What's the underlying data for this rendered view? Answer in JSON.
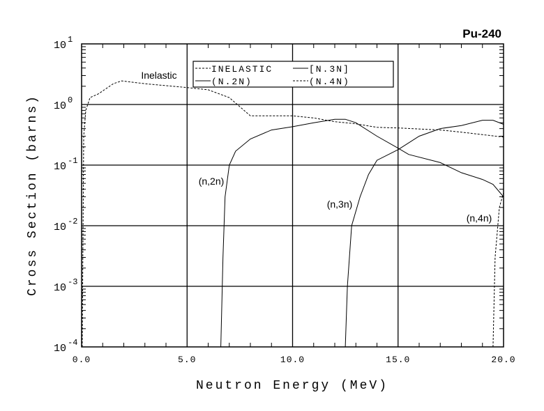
{
  "chart_data": {
    "type": "line",
    "title": "Pu-240",
    "xlabel": "Neutron Energy (MeV)",
    "ylabel": "Cross Section (barns)",
    "xlim": [
      0,
      20
    ],
    "ylim": [
      0.0001,
      10
    ],
    "yscale": "log",
    "grid": true,
    "legend_position": "top-center",
    "x_ticks": [
      0,
      5,
      10,
      15,
      20
    ],
    "x_tick_labels": [
      "0.0",
      "5.0",
      "10.0",
      "15.0",
      "20.0"
    ],
    "y_ticks": [
      1,
      0,
      -1,
      -2,
      -3,
      -4
    ],
    "y_tick_base": "10",
    "y_tick_exponents": [
      "1",
      "0",
      "-1",
      "-2",
      "-3",
      "-4"
    ],
    "series": [
      {
        "name": "INELASTIC",
        "legend": "INELASTIC",
        "style": "dashed",
        "annotation": "Inelastic",
        "x": [
          0.03,
          0.1,
          0.2,
          0.4,
          0.8,
          1.5,
          1.9,
          3,
          5,
          6,
          7,
          8,
          10,
          11,
          12,
          13,
          14,
          15,
          17,
          18,
          20
        ],
        "y": [
          0.0001,
          0.3,
          0.8,
          1.3,
          1.5,
          2.2,
          2.45,
          2.2,
          1.9,
          1.75,
          1.3,
          0.65,
          0.65,
          0.6,
          0.52,
          0.48,
          0.42,
          0.41,
          0.38,
          0.35,
          0.29
        ]
      },
      {
        "name": "(N,2N)",
        "legend": "(N.2N)",
        "style": "solid",
        "annotation": "(n,2n)",
        "x": [
          6.6,
          6.7,
          6.8,
          7.0,
          7.3,
          8,
          9,
          10,
          11,
          12,
          12.5,
          13,
          14,
          15,
          15.5,
          17,
          18,
          19,
          19.5,
          20
        ],
        "y": [
          0.0001,
          0.003,
          0.03,
          0.1,
          0.17,
          0.27,
          0.38,
          0.43,
          0.5,
          0.57,
          0.57,
          0.5,
          0.3,
          0.19,
          0.15,
          0.11,
          0.075,
          0.058,
          0.048,
          0.03
        ]
      },
      {
        "name": "(N,3N)",
        "legend": "[N.3N]",
        "style": "solid",
        "annotation": "(n,3n)",
        "x": [
          12.5,
          12.6,
          12.8,
          13.2,
          13.6,
          14,
          15,
          16,
          17,
          18,
          19,
          19.5,
          20
        ],
        "y": [
          0.0001,
          0.001,
          0.01,
          0.03,
          0.07,
          0.12,
          0.18,
          0.3,
          0.4,
          0.45,
          0.55,
          0.55,
          0.47
        ]
      },
      {
        "name": "(N,4N)",
        "legend": "(N.4N)",
        "style": "dashed",
        "annotation": "(n,4n)",
        "x": [
          19.5,
          19.6,
          19.8,
          20
        ],
        "y": [
          0.0001,
          0.003,
          0.02,
          0.035
        ]
      }
    ]
  }
}
